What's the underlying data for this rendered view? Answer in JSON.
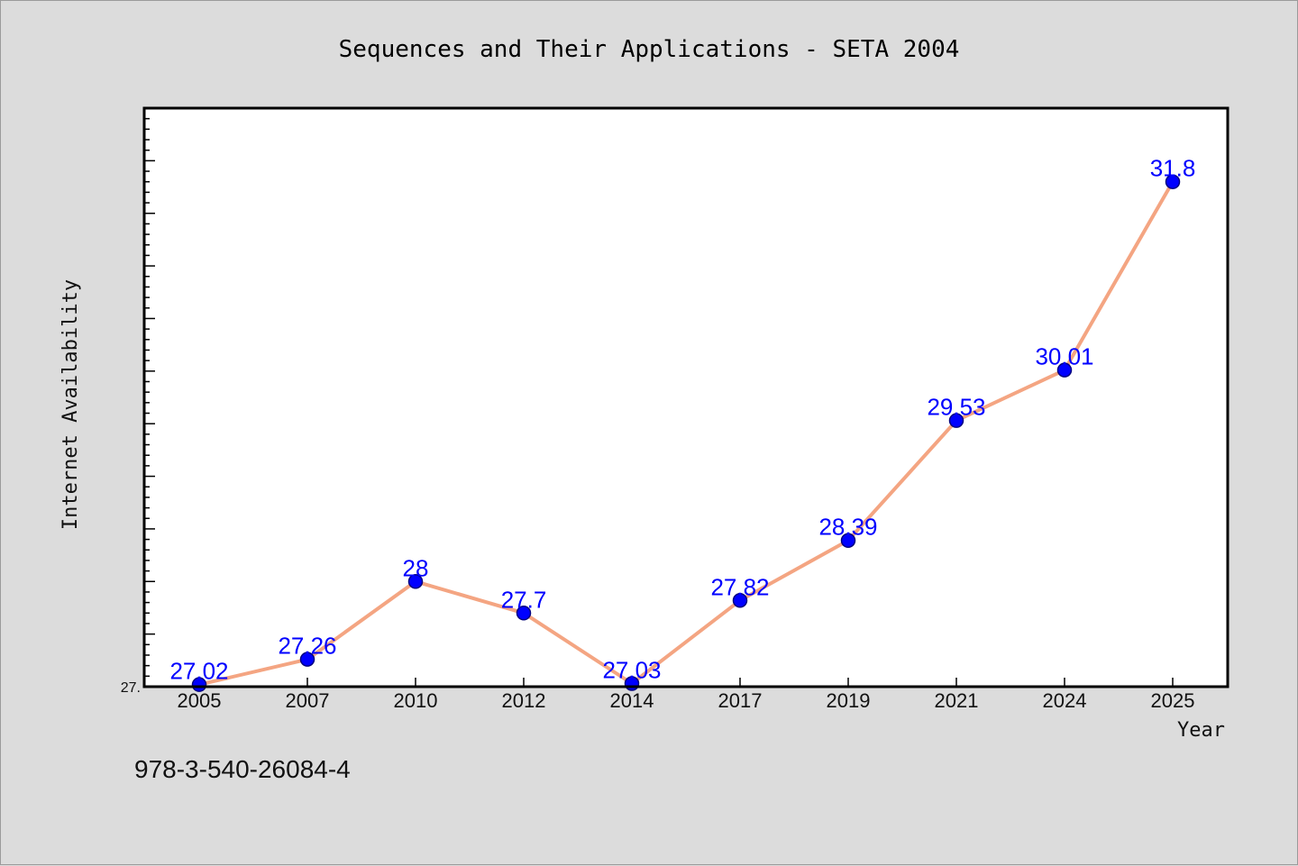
{
  "chart_data": {
    "type": "line",
    "title": "Sequences and Their Applications - SETA 2004",
    "xlabel": "Year",
    "ylabel": "Internet Availability",
    "categories": [
      "2005",
      "2007",
      "2010",
      "2012",
      "2014",
      "2017",
      "2019",
      "2021",
      "2024",
      "2025"
    ],
    "series": [
      {
        "values": [
          27.02,
          27.26,
          28,
          27.7,
          27.03,
          27.82,
          28.39,
          29.53,
          30.01,
          31.8
        ]
      }
    ],
    "data_labels": [
      "27.02",
      "27.26",
      "28",
      "27.7",
      "27.03",
      "27.82",
      "28.39",
      "29.53",
      "30.01",
      "31.8"
    ],
    "y_tick_labels": [
      {
        "value": 27.0,
        "label": "27."
      }
    ],
    "ylim": [
      27.0,
      32.5
    ],
    "y_minor_step": 0.1,
    "y_major_step": 0.5,
    "grid": false,
    "legend": "none",
    "colors": {
      "line": "#f4a582",
      "marker_fill": "#0000ff",
      "marker_edge": "#000080",
      "data_label": "#0000ff",
      "plot_background": "#ffffff",
      "figure_background": "#dcdcdc"
    }
  },
  "footnote": "978-3-540-26084-4"
}
